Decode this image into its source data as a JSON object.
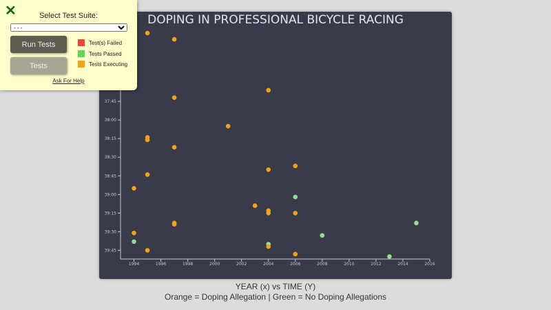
{
  "chart_data": {
    "type": "scatter",
    "title": "DOPING IN PROFESSIONAL BICYCLE RACING",
    "xlabel": "YEAR (x) vs TIME (Y)",
    "legend_text": "Orange = Doping Allegation | Green = No Doping Allegations",
    "xlim": [
      1993,
      2016
    ],
    "ylim": [
      "36:50",
      "39:52"
    ],
    "y_inverted": true,
    "x_ticks": [
      "1994",
      "1996",
      "1998",
      "2000",
      "2002",
      "2004",
      "2006",
      "2008",
      "2010",
      "2012",
      "2014",
      "2016"
    ],
    "y_ticks": [
      "37:45",
      "38:00",
      "38:15",
      "38:30",
      "38:45",
      "39:00",
      "39:15",
      "39:30",
      "39:45"
    ],
    "colors": {
      "doping": "#f5a314",
      "clean": "#8fe08f"
    },
    "points": [
      {
        "year": 1995,
        "time": "36:50",
        "doping": true
      },
      {
        "year": 1997,
        "time": "36:55",
        "doping": true
      },
      {
        "year": 2004,
        "time": "37:36",
        "doping": true
      },
      {
        "year": 1997,
        "time": "37:42",
        "doping": true
      },
      {
        "year": 2001,
        "time": "38:05",
        "doping": true
      },
      {
        "year": 1995,
        "time": "38:14",
        "doping": true
      },
      {
        "year": 1995,
        "time": "38:16",
        "doping": true
      },
      {
        "year": 1997,
        "time": "38:22",
        "doping": true
      },
      {
        "year": 2006,
        "time": "38:37",
        "doping": true
      },
      {
        "year": 2004,
        "time": "38:40",
        "doping": true
      },
      {
        "year": 1995,
        "time": "38:44",
        "doping": true
      },
      {
        "year": 1994,
        "time": "38:55",
        "doping": true
      },
      {
        "year": 2006,
        "time": "39:02",
        "doping": false
      },
      {
        "year": 2003,
        "time": "39:09",
        "doping": true
      },
      {
        "year": 2004,
        "time": "39:13",
        "doping": true
      },
      {
        "year": 2004,
        "time": "39:15",
        "doping": true
      },
      {
        "year": 2006,
        "time": "39:15",
        "doping": true
      },
      {
        "year": 1997,
        "time": "39:23",
        "doping": true
      },
      {
        "year": 1997,
        "time": "39:24",
        "doping": true
      },
      {
        "year": 2015,
        "time": "39:23",
        "doping": false
      },
      {
        "year": 1994,
        "time": "39:31",
        "doping": true
      },
      {
        "year": 2008,
        "time": "39:33",
        "doping": false
      },
      {
        "year": 1994,
        "time": "39:38",
        "doping": false
      },
      {
        "year": 2004,
        "time": "39:40",
        "doping": false
      },
      {
        "year": 2004,
        "time": "39:42",
        "doping": true
      },
      {
        "year": 1995,
        "time": "39:45",
        "doping": true
      },
      {
        "year": 2006,
        "time": "39:48",
        "doping": true
      },
      {
        "year": 2013,
        "time": "39:50",
        "doping": false
      }
    ]
  },
  "tester": {
    "close_icon": "x-close-icon",
    "suite_label": "Select Test Suite:",
    "suite_selected": "- - -",
    "run_button": "Run Tests",
    "tests_button": "Tests",
    "legend": [
      {
        "label": "Test(s) Failed",
        "color": "#f44336"
      },
      {
        "label": "Tests Passed",
        "color": "#5bd75b"
      },
      {
        "label": "Tests Executing",
        "color": "#f5a314"
      }
    ],
    "help_link": "Ask For Help"
  }
}
